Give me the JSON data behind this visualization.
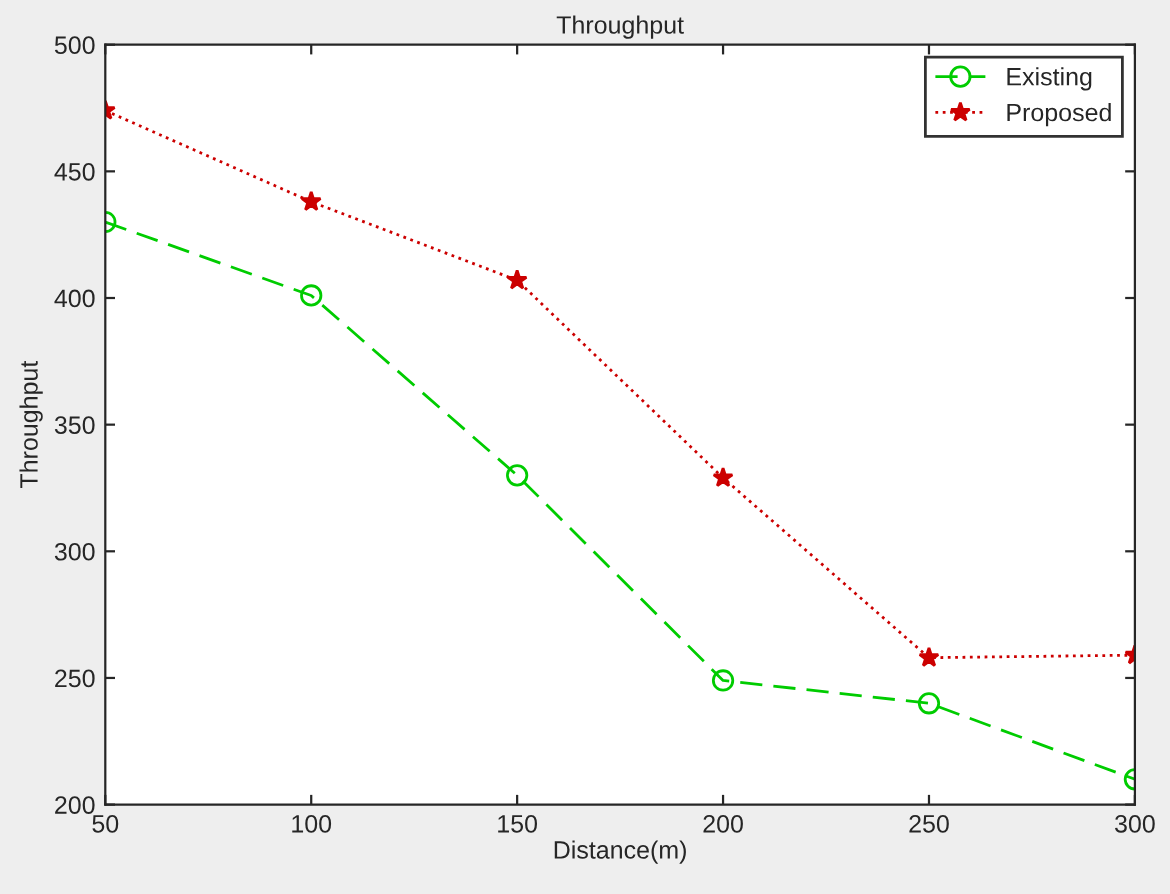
{
  "chart_data": {
    "type": "line",
    "title": "Throughput",
    "xlabel": "Distance(m)",
    "ylabel": "Throughput",
    "x": [
      50,
      100,
      150,
      200,
      250,
      300
    ],
    "series": [
      {
        "name": "Existing",
        "color": "#00cc00",
        "values": [
          430,
          401,
          330,
          249,
          240,
          210
        ],
        "marker": "circle",
        "line_style": "dashed"
      },
      {
        "name": "Proposed",
        "color": "#cc0000",
        "values": [
          474,
          438,
          407,
          329,
          258,
          259
        ],
        "marker": "star",
        "line_style": "dotted"
      }
    ],
    "xlim": [
      50,
      300
    ],
    "xticks": [
      50,
      100,
      150,
      200,
      250,
      300
    ],
    "ylim": [
      200,
      500
    ],
    "yticks": [
      200,
      250,
      300,
      350,
      400,
      450,
      500
    ],
    "grid": false,
    "legend": "top right"
  }
}
